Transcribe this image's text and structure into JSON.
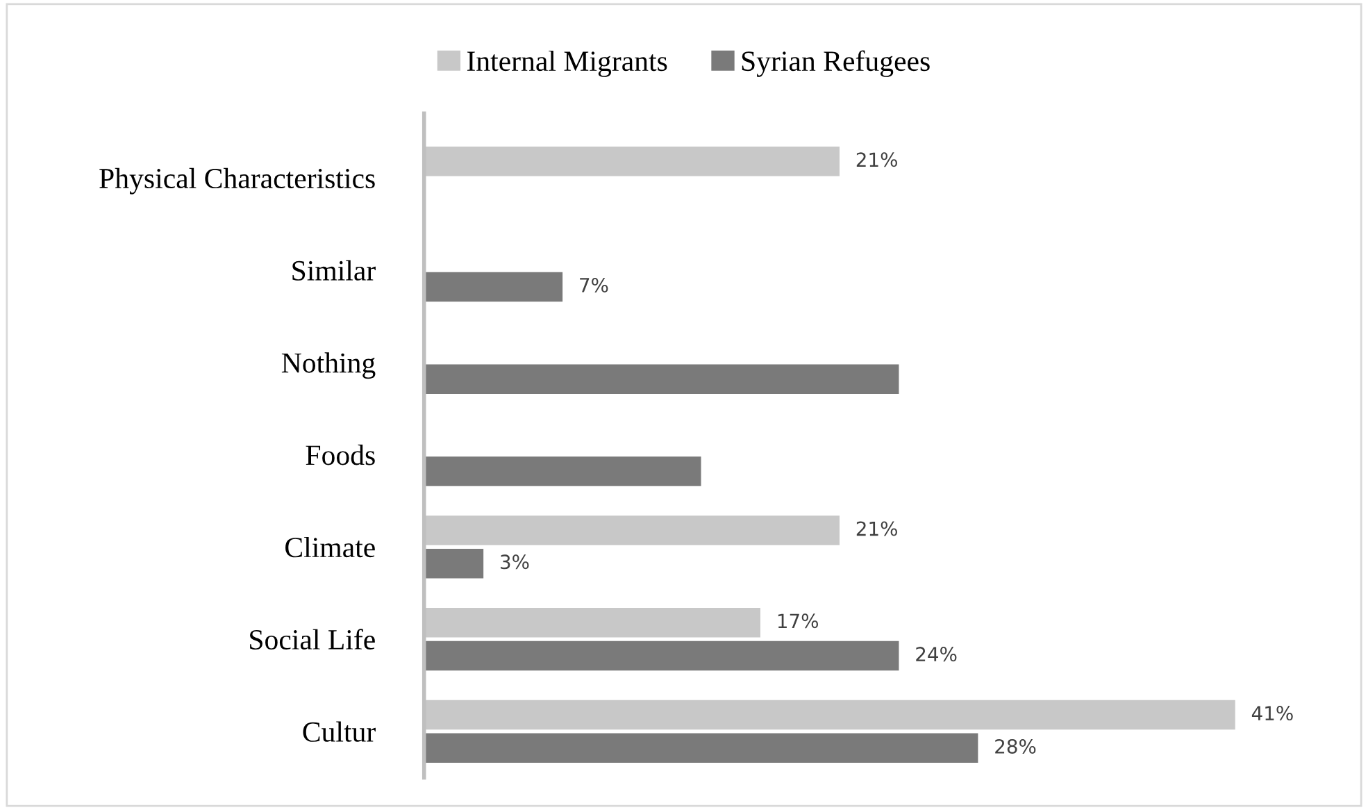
{
  "chart_data": {
    "type": "bar",
    "orientation": "horizontal",
    "categories": [
      "Physical Characteristics",
      "Similar",
      "Nothing",
      "Foods",
      "Climate",
      "Social Life",
      "Cultur"
    ],
    "series": [
      {
        "name": "Internal Migrants",
        "color": "#c8c8c8",
        "values": [
          21,
          null,
          null,
          null,
          21,
          17,
          41
        ],
        "value_labels": [
          "21%",
          null,
          null,
          null,
          "21%",
          "17%",
          "41%"
        ]
      },
      {
        "name": "Syrian Refugees",
        "color": "#7a7a7a",
        "values": [
          null,
          7,
          24,
          14,
          3,
          24,
          28
        ],
        "value_labels": [
          null,
          "7%",
          null,
          null,
          "3%",
          "24%",
          "28%"
        ]
      }
    ],
    "legend": "top",
    "grid": false
  }
}
